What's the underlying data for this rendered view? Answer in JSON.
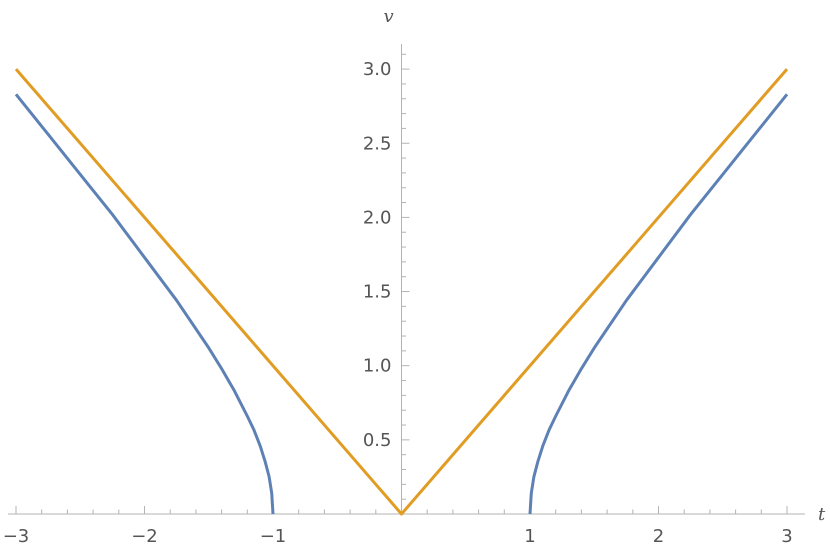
{
  "chart_data": {
    "type": "line",
    "title": "",
    "xlabel": "t",
    "ylabel": "v",
    "xlim": [
      -3,
      3
    ],
    "ylim": [
      0,
      3.15
    ],
    "x_ticks": [
      -3,
      -2,
      -1,
      1,
      2,
      3
    ],
    "x_tick_labels": [
      "−3",
      "−2",
      "−1",
      "1",
      "2",
      "3"
    ],
    "y_ticks": [
      0.5,
      1.0,
      1.5,
      2.0,
      2.5,
      3.0
    ],
    "y_tick_labels": [
      "0.5",
      "1.0",
      "1.5",
      "2.0",
      "2.5",
      "3.0"
    ],
    "grid": false,
    "series": [
      {
        "color": "#5E81B5",
        "x": [
          -3,
          -2.75,
          -2.5,
          -2.25,
          -2,
          -1.75,
          -1.5,
          -1.4,
          -1.3,
          -1.2,
          -1.15,
          -1.1,
          -1.06,
          -1.03,
          -1.01,
          -1.0
        ],
        "y": [
          2.83,
          2.56,
          2.29,
          2.02,
          1.73,
          1.44,
          1.12,
          0.98,
          0.83,
          0.66,
          0.57,
          0.46,
          0.35,
          0.25,
          0.14,
          0.0
        ]
      },
      {
        "color": "#5E81B5",
        "x": [
          1.0,
          1.01,
          1.03,
          1.06,
          1.1,
          1.15,
          1.2,
          1.3,
          1.4,
          1.5,
          1.75,
          2,
          2.25,
          2.5,
          2.75,
          3
        ],
        "y": [
          0.0,
          0.14,
          0.25,
          0.35,
          0.46,
          0.57,
          0.66,
          0.83,
          0.98,
          1.12,
          1.44,
          1.73,
          2.02,
          2.29,
          2.56,
          2.83
        ]
      },
      {
        "color": "#E19C24",
        "x": [
          -3,
          0,
          3
        ],
        "y": [
          3,
          0,
          3
        ]
      }
    ]
  }
}
